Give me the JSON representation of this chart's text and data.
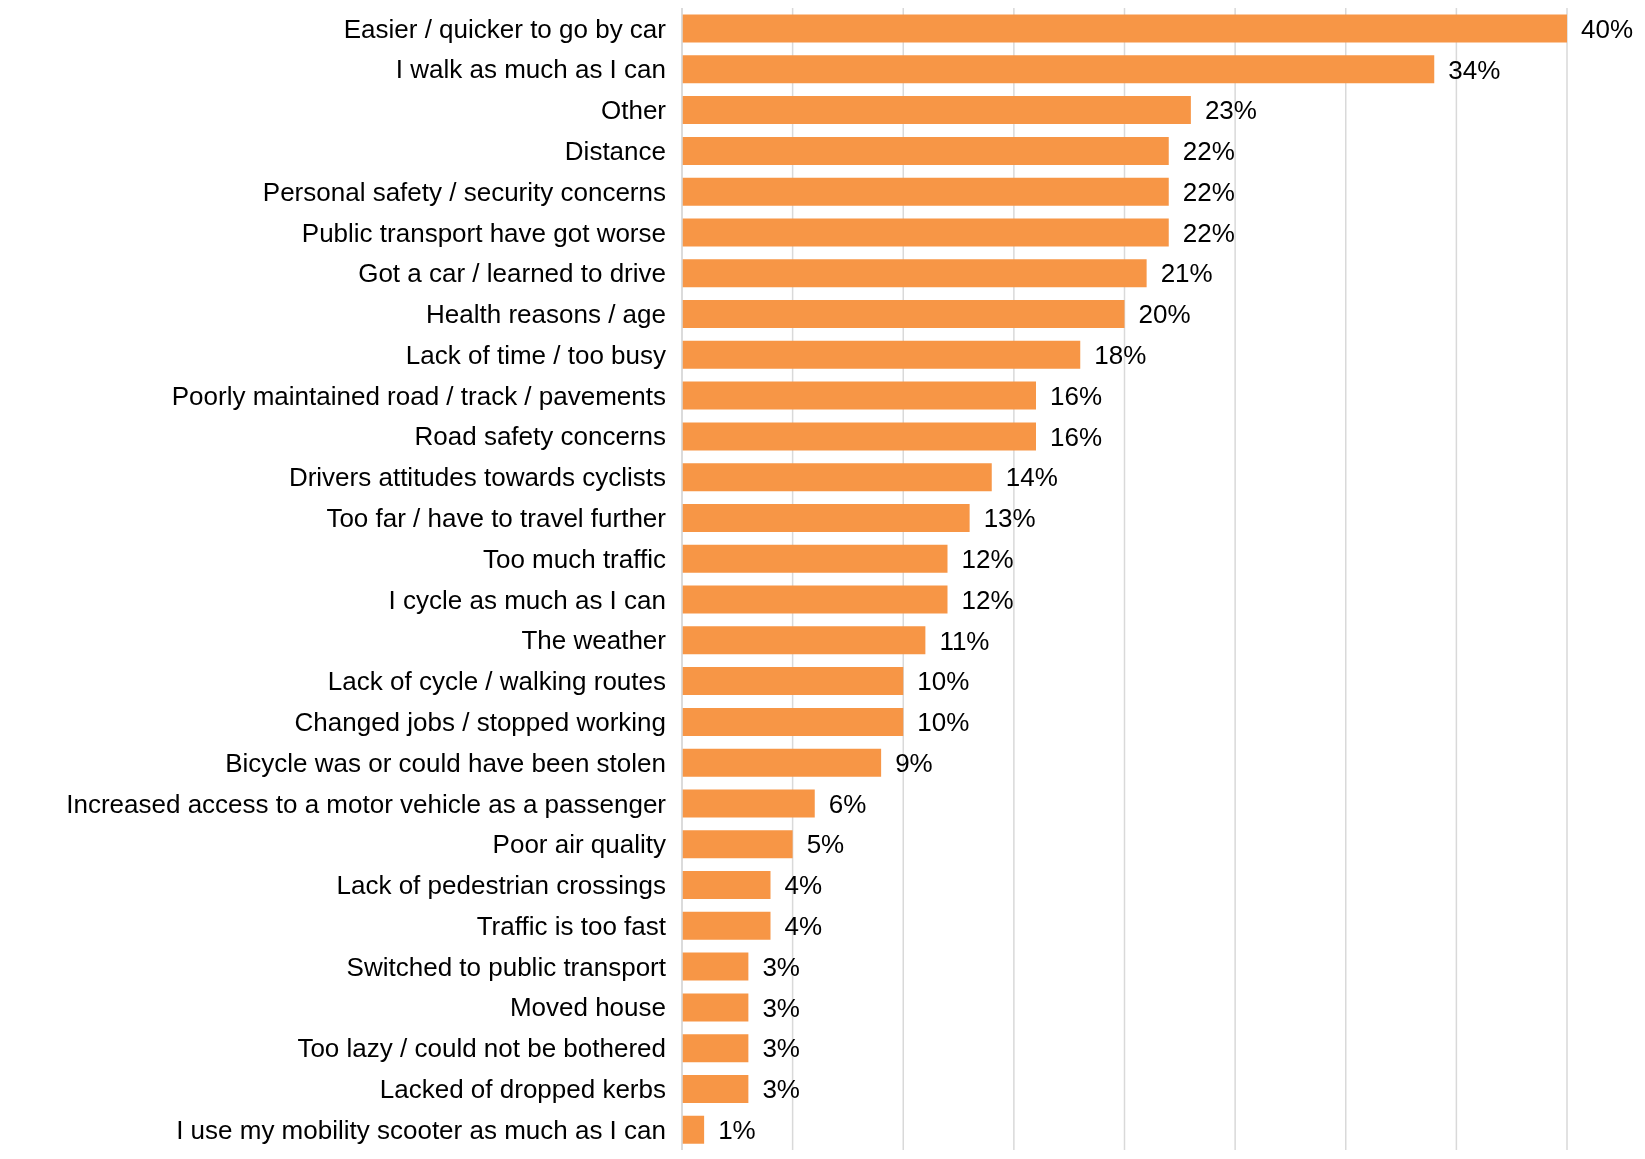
{
  "chart_data": {
    "type": "bar",
    "orientation": "horizontal",
    "categories": [
      "Easier / quicker to go by car",
      "I walk as much as I can",
      "Other",
      "Distance",
      "Personal safety / security concerns",
      "Public transport have got worse",
      "Got a car / learned to drive",
      "Health reasons / age",
      "Lack of time / too busy",
      "Poorly maintained road / track / pavements",
      "Road safety concerns",
      "Drivers attitudes towards cyclists",
      "Too far / have to travel further",
      "Too much traffic",
      "I cycle as much as I can",
      "The weather",
      "Lack of cycle / walking routes",
      "Changed jobs / stopped working",
      "Bicycle was or could have been stolen",
      "Increased access to a motor vehicle as a passenger",
      "Poor air quality",
      "Lack of pedestrian crossings",
      "Traffic is too fast",
      "Switched to public transport",
      "Moved house",
      "Too lazy / could not be bothered",
      "Lacked of dropped kerbs",
      "I use my mobility scooter as much as I can"
    ],
    "values": [
      40,
      34,
      23,
      22,
      22,
      22,
      21,
      20,
      18,
      16,
      16,
      14,
      13,
      12,
      12,
      11,
      10,
      10,
      9,
      6,
      5,
      4,
      4,
      3,
      3,
      3,
      3,
      1
    ],
    "value_labels": [
      "40%",
      "34%",
      "23%",
      "22%",
      "22%",
      "22%",
      "21%",
      "20%",
      "18%",
      "16%",
      "16%",
      "14%",
      "13%",
      "12%",
      "12%",
      "11%",
      "10%",
      "10%",
      "9%",
      "6%",
      "5%",
      "4%",
      "4%",
      "3%",
      "3%",
      "3%",
      "3%",
      "1%"
    ],
    "color": "#f79646",
    "grid": "x",
    "tick_labels": "y"
  }
}
